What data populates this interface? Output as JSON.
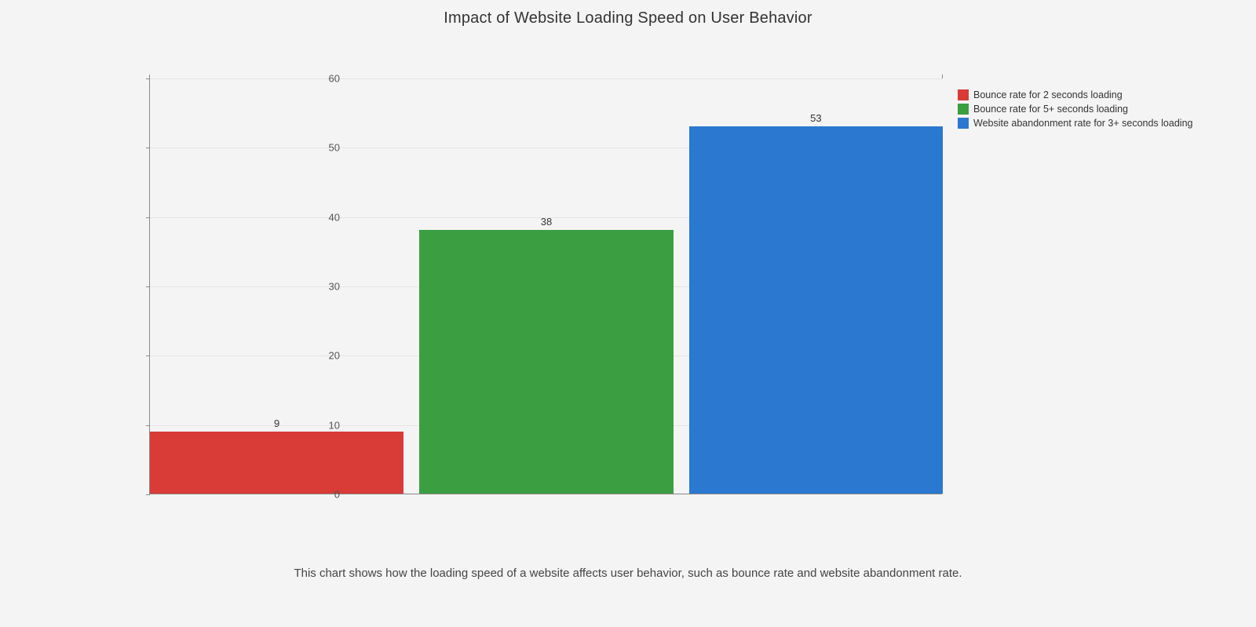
{
  "title": "Impact of Website Loading Speed on User Behavior",
  "caption": "This chart shows how the loading speed of a website affects user behavior, such as bounce rate and website abandonment rate.",
  "chart": {
    "type": "bar",
    "background_color": "#f4f4f4",
    "grid_color": "#e4e4e4",
    "axis_color": "#888888",
    "ylim": [
      0,
      60
    ],
    "ytick_step": 10,
    "yticks": [
      0,
      10,
      20,
      30,
      40,
      50,
      60
    ],
    "title_fontsize": 20,
    "label_fontsize": 13,
    "legend_fontsize": 12.5,
    "bar_gap_ratio": 0.02,
    "bars": [
      {
        "label": "Bounce rate for 2 seconds loading",
        "value": 9,
        "color": "#d93b36"
      },
      {
        "label": "Bounce rate for 5+ seconds loading",
        "value": 38,
        "color": "#3b9e41"
      },
      {
        "label": "Website abandonment rate for 3+ seconds loading",
        "value": 53,
        "color": "#2a78d0"
      }
    ]
  }
}
